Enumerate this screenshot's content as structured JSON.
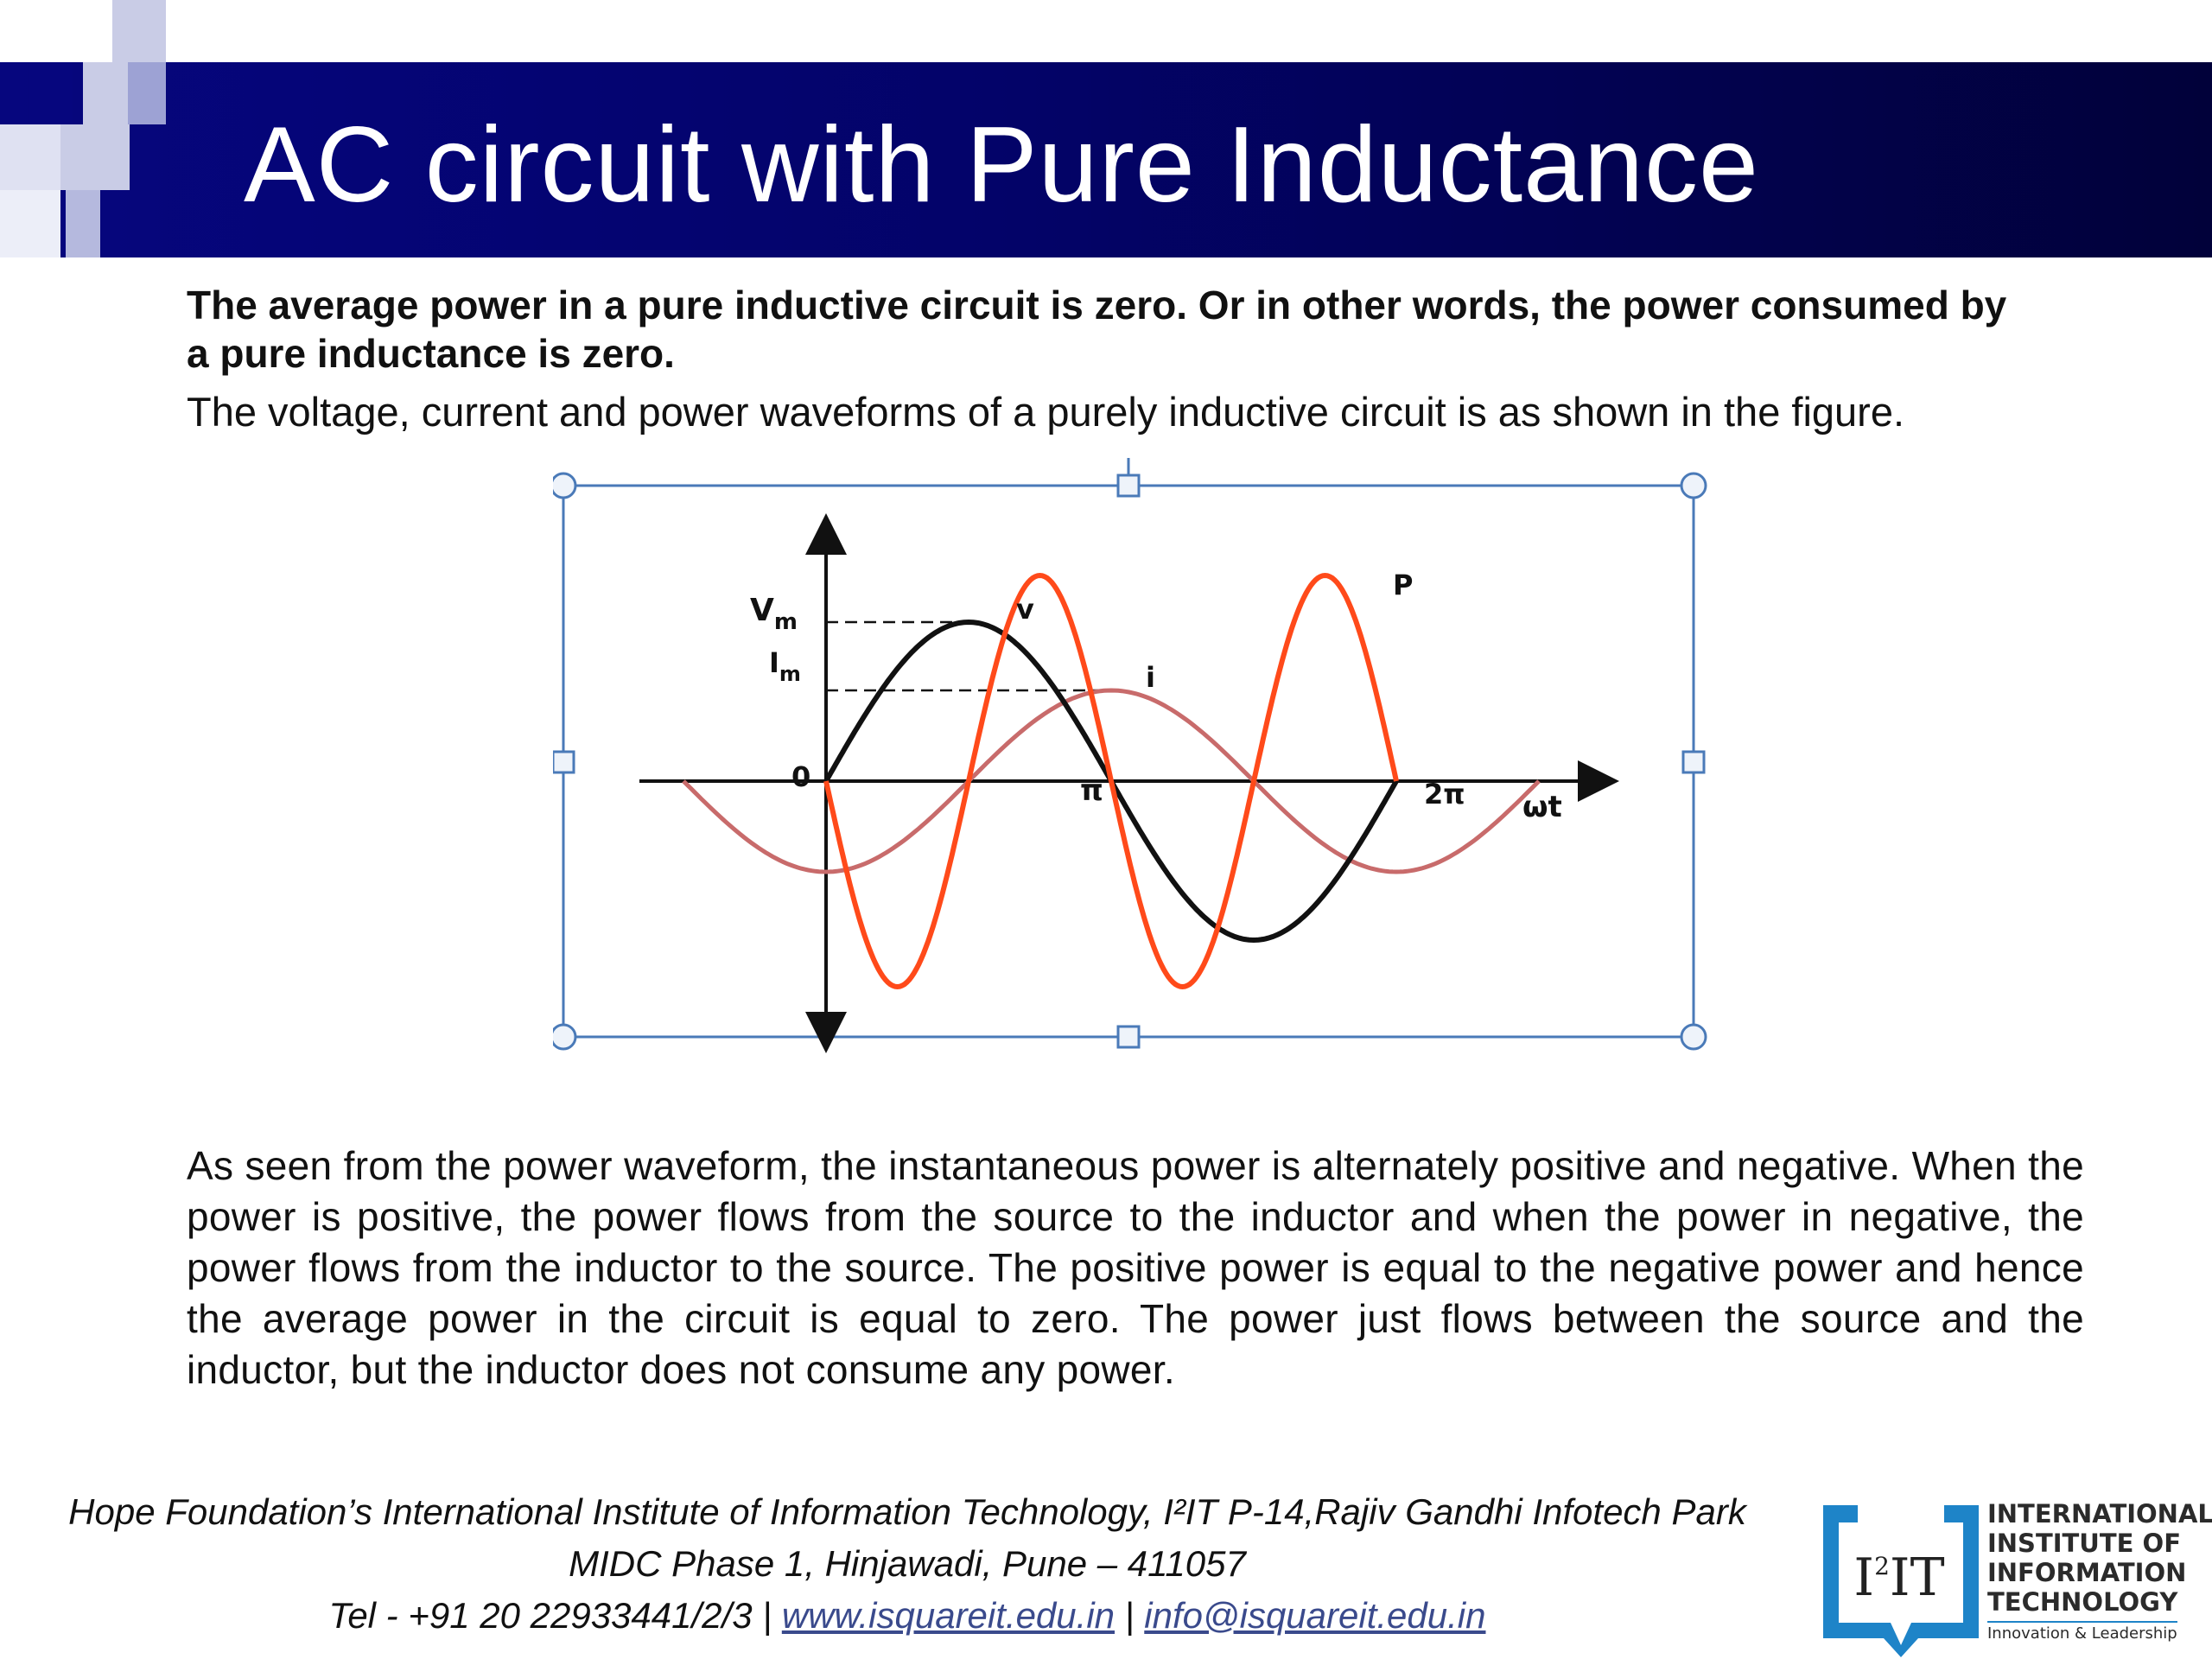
{
  "slide": {
    "title": "AC circuit with Pure Inductance",
    "lead": "The average power in a pure inductive circuit is zero. Or in other words, the power consumed by a pure inductance is zero.",
    "intro": "The voltage, current and power waveforms of a purely inductive circuit is as shown in the figure.",
    "body": "As seen from the power waveform, the instantaneous power is alternately positive and negative. When the power is positive, the power flows from the source to the inductor and when the power in negative, the power flows from the inductor to the source. The positive power is equal to the negative power and hence the average power in the circuit is equal to zero. The power just flows between the source and the inductor, but the inductor does not consume any power."
  },
  "figure": {
    "labels": {
      "vm": "V",
      "vm_sub": "m",
      "im": "I",
      "im_sub": "m",
      "zero": "0",
      "pi": "π",
      "two_pi": "2π",
      "omega_t": "ωt",
      "v": "v",
      "i": "i",
      "p": "P"
    },
    "colors": {
      "voltage": "#111111",
      "current": "#c86b6b",
      "power": "#ff4a1a",
      "selection": "#4a7ab8",
      "rotate_handle": "#8ad66a"
    }
  },
  "footer": {
    "line1": "Hope Foundation’s International Institute of Information Technology, I²IT P-14,Rajiv Gandhi Infotech Park",
    "line2": "MIDC Phase 1, Hinjawadi, Pune – 411057",
    "tel": "Tel - +91 20 22933441/2/3 | ",
    "website": "www.isquareit.edu.in",
    "separator": " | ",
    "email": "info@isquareit.edu.in"
  },
  "logo": {
    "mark": "I",
    "mark_sup": "2",
    "mark_tail": "IT",
    "line1": "INTERNATIONAL",
    "line2": "INSTITUTE OF",
    "line3": "INFORMATION",
    "line4": "TECHNOLOGY",
    "tagline": "Innovation & Leadership"
  }
}
